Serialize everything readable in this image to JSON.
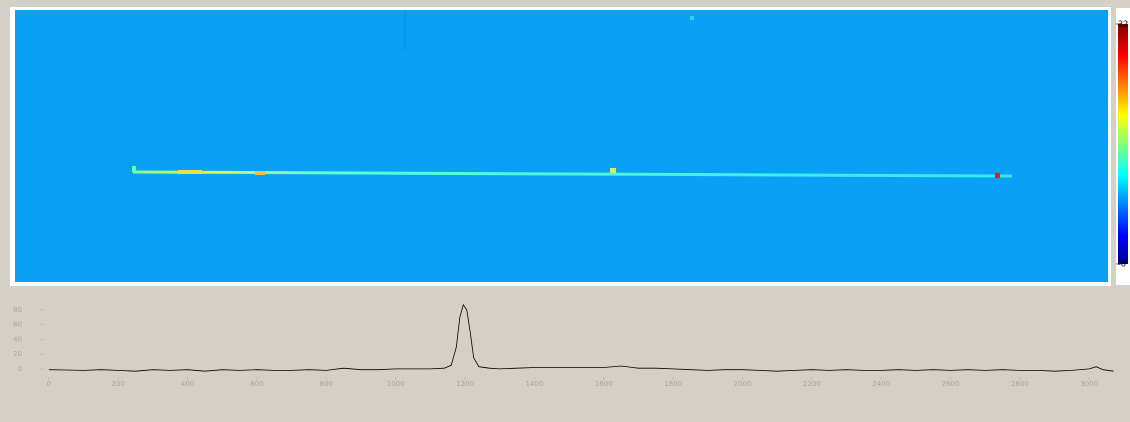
{
  "chart_data": [
    {
      "type": "heatmap",
      "clim": [
        -8,
        32
      ],
      "colorbar_ticks": [
        -8,
        32
      ]
    },
    {
      "type": "line",
      "color": "#000000",
      "x": [
        0,
        50,
        100,
        150,
        200,
        250,
        300,
        350,
        400,
        450,
        500,
        550,
        600,
        650,
        700,
        750,
        800,
        850,
        900,
        950,
        1000,
        1050,
        1100,
        1140,
        1160,
        1175,
        1185,
        1195,
        1205,
        1215,
        1225,
        1240,
        1270,
        1300,
        1350,
        1400,
        1450,
        1500,
        1550,
        1600,
        1650,
        1700,
        1750,
        1800,
        1850,
        1900,
        1950,
        2000,
        2050,
        2100,
        2150,
        2200,
        2250,
        2300,
        2350,
        2400,
        2450,
        2500,
        2550,
        2600,
        2650,
        2700,
        2750,
        2800,
        2850,
        2900,
        2950,
        3000,
        3020,
        3040,
        3070
      ],
      "values": [
        -1,
        -1.5,
        -2,
        -1,
        -2,
        -3,
        -1,
        -2,
        -1,
        -3,
        -1,
        -2,
        -1,
        -2,
        -2,
        -1,
        -2,
        1,
        -1,
        -1,
        0,
        0,
        0,
        1,
        5,
        30,
        70,
        87,
        80,
        50,
        15,
        3,
        1,
        0,
        1,
        2,
        2,
        2,
        2,
        2,
        4,
        1,
        1,
        0,
        -1,
        -2,
        -1,
        -1,
        -2,
        -3,
        -2,
        -1,
        -2,
        -1,
        -2,
        -2,
        -1,
        -2,
        -1,
        -2,
        -1,
        -2,
        -1,
        -2,
        -2,
        -3,
        -2,
        0,
        3,
        -1,
        -3
      ],
      "xlim": [
        -40,
        3080
      ],
      "ylim": [
        -15,
        103
      ],
      "xticks": [
        0,
        200,
        400,
        600,
        800,
        1000,
        1200,
        1400,
        1600,
        1800,
        2000,
        2200,
        2400,
        2600,
        2800,
        3000
      ],
      "yticks": [
        0,
        20,
        40,
        60,
        80
      ]
    }
  ]
}
